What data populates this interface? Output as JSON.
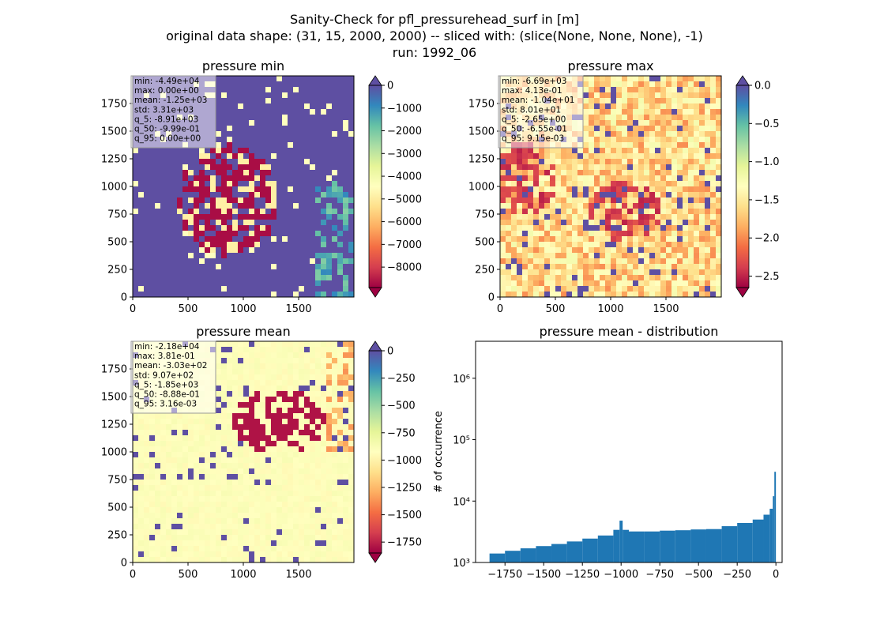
{
  "figure": {
    "title_lines": [
      "Sanity-Check for pfl_pressurehead_surf in [m]",
      "original data shape: (31, 15, 2000, 2000) -- sliced with: (slice(None, None, None), -1)",
      "run: 1992_06"
    ]
  },
  "chart_data": [
    {
      "type": "heatmap",
      "title": "pressure min",
      "xlim": [
        0,
        2000
      ],
      "ylim": [
        0,
        2000
      ],
      "xticks": [
        0,
        500,
        1000,
        1500
      ],
      "yticks": [
        0,
        250,
        500,
        750,
        1000,
        1250,
        1500,
        1750
      ],
      "xtick_labels": [
        "0",
        "500",
        "1000",
        "1500"
      ],
      "ytick_labels": [
        "0",
        "250",
        "500",
        "750",
        "1000",
        "1250",
        "1500",
        "1750"
      ],
      "colormap": "Spectral",
      "colorbar": {
        "vmin": -8900,
        "vmax": 0,
        "ticks": [
          0,
          -1000,
          -2000,
          -3000,
          -4000,
          -5000,
          -6000,
          -7000,
          -8000
        ],
        "tick_labels": [
          "0",
          "−1000",
          "−2000",
          "−3000",
          "−4000",
          "−5000",
          "−6000",
          "−7000",
          "−8000"
        ],
        "extend": "both",
        "top_extend_color": "#5e4fa2",
        "bottom_extend_color": "#9e0142"
      },
      "stats": [
        "min: -4.49e+04",
        "max: 0.00e+00",
        "mean: -1.25e+03",
        "std: 3.31e+03",
        "q_5: -8.91e+03",
        "q_50: -9.99e-01",
        "q_95: 0.00e+00"
      ]
    },
    {
      "type": "heatmap",
      "title": "pressure max",
      "xlim": [
        0,
        2000
      ],
      "ylim": [
        0,
        2000
      ],
      "xticks": [
        0,
        500,
        1000,
        1500
      ],
      "yticks": [
        0,
        250,
        500,
        750,
        1000,
        1250,
        1500,
        1750
      ],
      "xtick_labels": [
        "0",
        "500",
        "1000",
        "1500"
      ],
      "ytick_labels": [
        "0",
        "250",
        "500",
        "750",
        "1000",
        "1250",
        "1500",
        "1750"
      ],
      "colormap": "Spectral",
      "colorbar": {
        "vmin": -2.65,
        "vmax": 0.0,
        "ticks": [
          0.0,
          -0.5,
          -1.0,
          -1.5,
          -2.0,
          -2.5
        ],
        "tick_labels": [
          "0.0",
          "−0.5",
          "−1.0",
          "−1.5",
          "−2.0",
          "−2.5"
        ],
        "extend": "both",
        "top_extend_color": "#5e4fa2",
        "bottom_extend_color": "#9e0142"
      },
      "stats": [
        "min: -6.69e+03",
        "max: 4.13e-01",
        "mean: -1.04e+01",
        "std: 8.01e+01",
        "q_5: -2.65e+00",
        "q_50: -6.55e-01",
        "q_95: 9.15e-03"
      ]
    },
    {
      "type": "heatmap",
      "title": "pressure mean",
      "xlim": [
        0,
        2000
      ],
      "ylim": [
        0,
        2000
      ],
      "xticks": [
        0,
        500,
        1000,
        1500
      ],
      "yticks": [
        0,
        250,
        500,
        750,
        1000,
        1250,
        1500,
        1750
      ],
      "xtick_labels": [
        "0",
        "500",
        "1000",
        "1500"
      ],
      "ytick_labels": [
        "0",
        "250",
        "500",
        "750",
        "1000",
        "1250",
        "1500",
        "1750"
      ],
      "colormap": "Spectral",
      "colorbar": {
        "vmin": -1850,
        "vmax": 0,
        "ticks": [
          0,
          -250,
          -500,
          -750,
          -1000,
          -1250,
          -1500,
          -1750
        ],
        "tick_labels": [
          "0",
          "−250",
          "−500",
          "−750",
          "−1000",
          "−1250",
          "−1500",
          "−1750"
        ],
        "extend": "both",
        "top_extend_color": "#5e4fa2",
        "bottom_extend_color": "#9e0142"
      },
      "stats": [
        "min: -2.18e+04",
        "max: 3.81e-01",
        "mean: -3.03e+02",
        "std: 9.07e+02",
        "q_5: -1.85e+03",
        "q_50: -8.88e-01",
        "q_95: 3.16e-03"
      ]
    },
    {
      "type": "bar",
      "title": "pressure mean - distribution",
      "ylabel": "# of occurrence",
      "xlabel": "",
      "yscale": "log",
      "xlim": [
        -1940,
        40
      ],
      "ylim": [
        1000,
        4000000
      ],
      "xticks": [
        -1750,
        -1500,
        -1250,
        -1000,
        -750,
        -500,
        -250,
        0
      ],
      "xtick_labels": [
        "−1750",
        "−1500",
        "−1250",
        "−1000",
        "−750",
        "−500",
        "−250",
        "0"
      ],
      "yticks": [
        1000,
        10000,
        100000,
        1000000
      ],
      "ytick_labels": [
        "10³",
        "10⁴",
        "10⁵",
        "10⁶"
      ],
      "bar_color": "#1f77b4",
      "bins": [
        -1850,
        -1750,
        -1650,
        -1550,
        -1450,
        -1350,
        -1250,
        -1150,
        -1050,
        -1010,
        -990,
        -950,
        -850,
        -750,
        -650,
        -550,
        -450,
        -350,
        -250,
        -150,
        -80,
        -40,
        -20,
        -10,
        0
      ],
      "counts": [
        1400,
        1550,
        1700,
        1850,
        2000,
        2200,
        2450,
        2750,
        3400,
        4800,
        3400,
        3200,
        3200,
        3300,
        3350,
        3450,
        3500,
        3900,
        4400,
        5000,
        6000,
        7500,
        12000,
        30000
      ]
    }
  ]
}
